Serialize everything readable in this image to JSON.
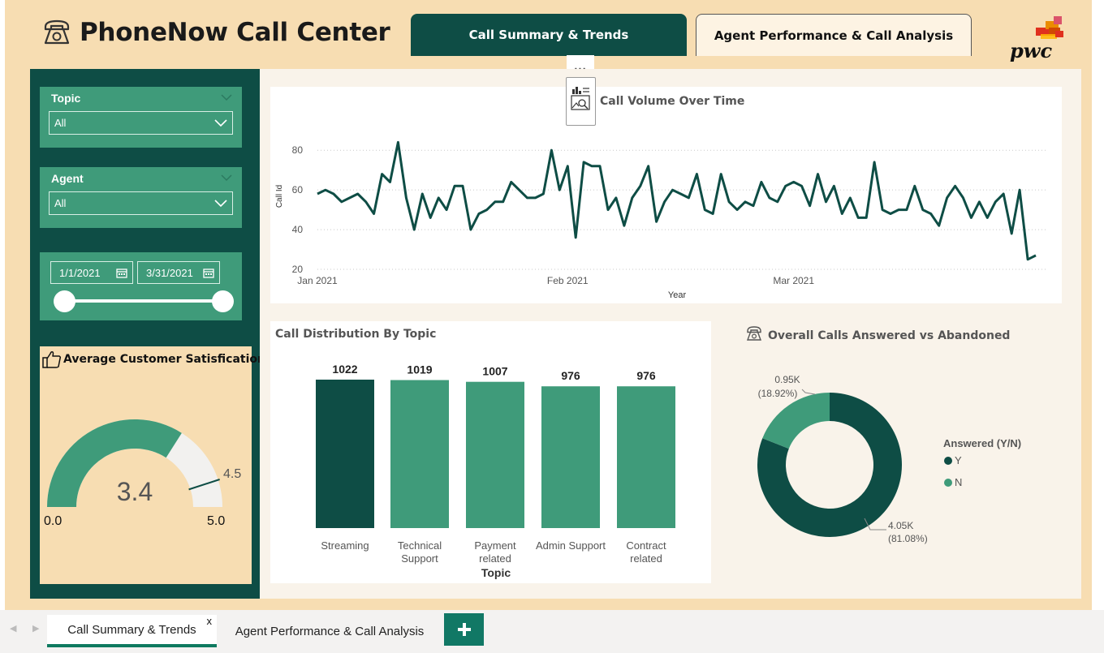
{
  "app": {
    "title": "PhoneNow Call Center",
    "logo_text": "pwc",
    "colors": {
      "dark_green": "#0e4d45",
      "medium_green": "#3f9b7a",
      "beige": "#f7ddb2",
      "light_bg": "#f9f3ea"
    }
  },
  "nav_tabs": [
    {
      "label": "Call Summary & Trends",
      "active": true
    },
    {
      "label": "Agent Performance & Call Analysis",
      "active": false
    }
  ],
  "more_options": "...",
  "filters": {
    "topic": {
      "label": "Topic",
      "value": "All"
    },
    "agent": {
      "label": "Agent",
      "value": "All"
    },
    "date": {
      "start": "1/1/2021",
      "end": "3/31/2021"
    }
  },
  "satisfaction": {
    "title": "Average Customer Satisfication",
    "value_label": "3.4",
    "min_label": "0.0",
    "max_label": "5.0",
    "target_label": "4.5",
    "value": 3.4,
    "min": 0,
    "max": 5,
    "target": 4.5
  },
  "volume_chart": {
    "title": "Call Volume Over Time"
  },
  "topic_chart": {
    "title": "Call Distribution By Topic"
  },
  "donut_chart": {
    "title": "Overall Calls Answered vs Abandoned",
    "legend_title": "Answered (Y/N)",
    "legend": [
      {
        "key": "Y",
        "color": "#0e4d45"
      },
      {
        "key": "N",
        "color": "#3f9b7a"
      }
    ],
    "label_n_value": "0.95K",
    "label_n_pct": "(18.92%)",
    "label_y_value": "4.05K",
    "label_y_pct": "(81.08%)"
  },
  "chart_data": [
    {
      "type": "line",
      "title": "Call Volume Over Time",
      "xlabel": "Year",
      "ylabel": "Call Id",
      "x_ticks": [
        "Jan 2021",
        "Feb 2021",
        "Mar 2021"
      ],
      "y_ticks": [
        20,
        40,
        60,
        80
      ],
      "ylim": [
        20,
        85
      ],
      "x_range": [
        "2021-01-01",
        "2021-03-31"
      ],
      "grid": "dotted horizontal",
      "series": [
        {
          "values": [
            58,
            60,
            58,
            54,
            56,
            58,
            54,
            48,
            68,
            64,
            84,
            56,
            40,
            58,
            46,
            56,
            50,
            62,
            62,
            40,
            48,
            50,
            54,
            54,
            64,
            60,
            56,
            56,
            58,
            80,
            60,
            72,
            36,
            74,
            72,
            72,
            50,
            56,
            42,
            56,
            62,
            72,
            44,
            54,
            60,
            58,
            56,
            68,
            50,
            48,
            68,
            54,
            50,
            54,
            52,
            64,
            56,
            54,
            62,
            64,
            62,
            52,
            68,
            54,
            62,
            48,
            56,
            46,
            46,
            74,
            50,
            48,
            50,
            50,
            62,
            50,
            48,
            42,
            56,
            62,
            56,
            46,
            54,
            46,
            54,
            58,
            38,
            60,
            25,
            27
          ]
        }
      ]
    },
    {
      "type": "bar",
      "title": "Call Distribution By Topic",
      "xlabel": "Topic",
      "categories": [
        "Streaming",
        "Technical Support",
        "Payment related",
        "Admin Support",
        "Contract related"
      ],
      "category_lines": [
        [
          "Streaming"
        ],
        [
          "Technical",
          "Support"
        ],
        [
          "Payment",
          "related"
        ],
        [
          "Admin Support"
        ],
        [
          "Contract",
          "related"
        ]
      ],
      "values": [
        1022,
        1019,
        1007,
        976,
        976
      ],
      "highlight_index": 0
    },
    {
      "type": "pie",
      "title": "Overall Calls Answered vs Abandoned",
      "legend_title": "Answered (Y/N)",
      "slices": [
        {
          "label": "Y",
          "value": 4050,
          "percent": 81.08
        },
        {
          "label": "N",
          "value": 950,
          "percent": 18.92
        }
      ]
    }
  ]
}
